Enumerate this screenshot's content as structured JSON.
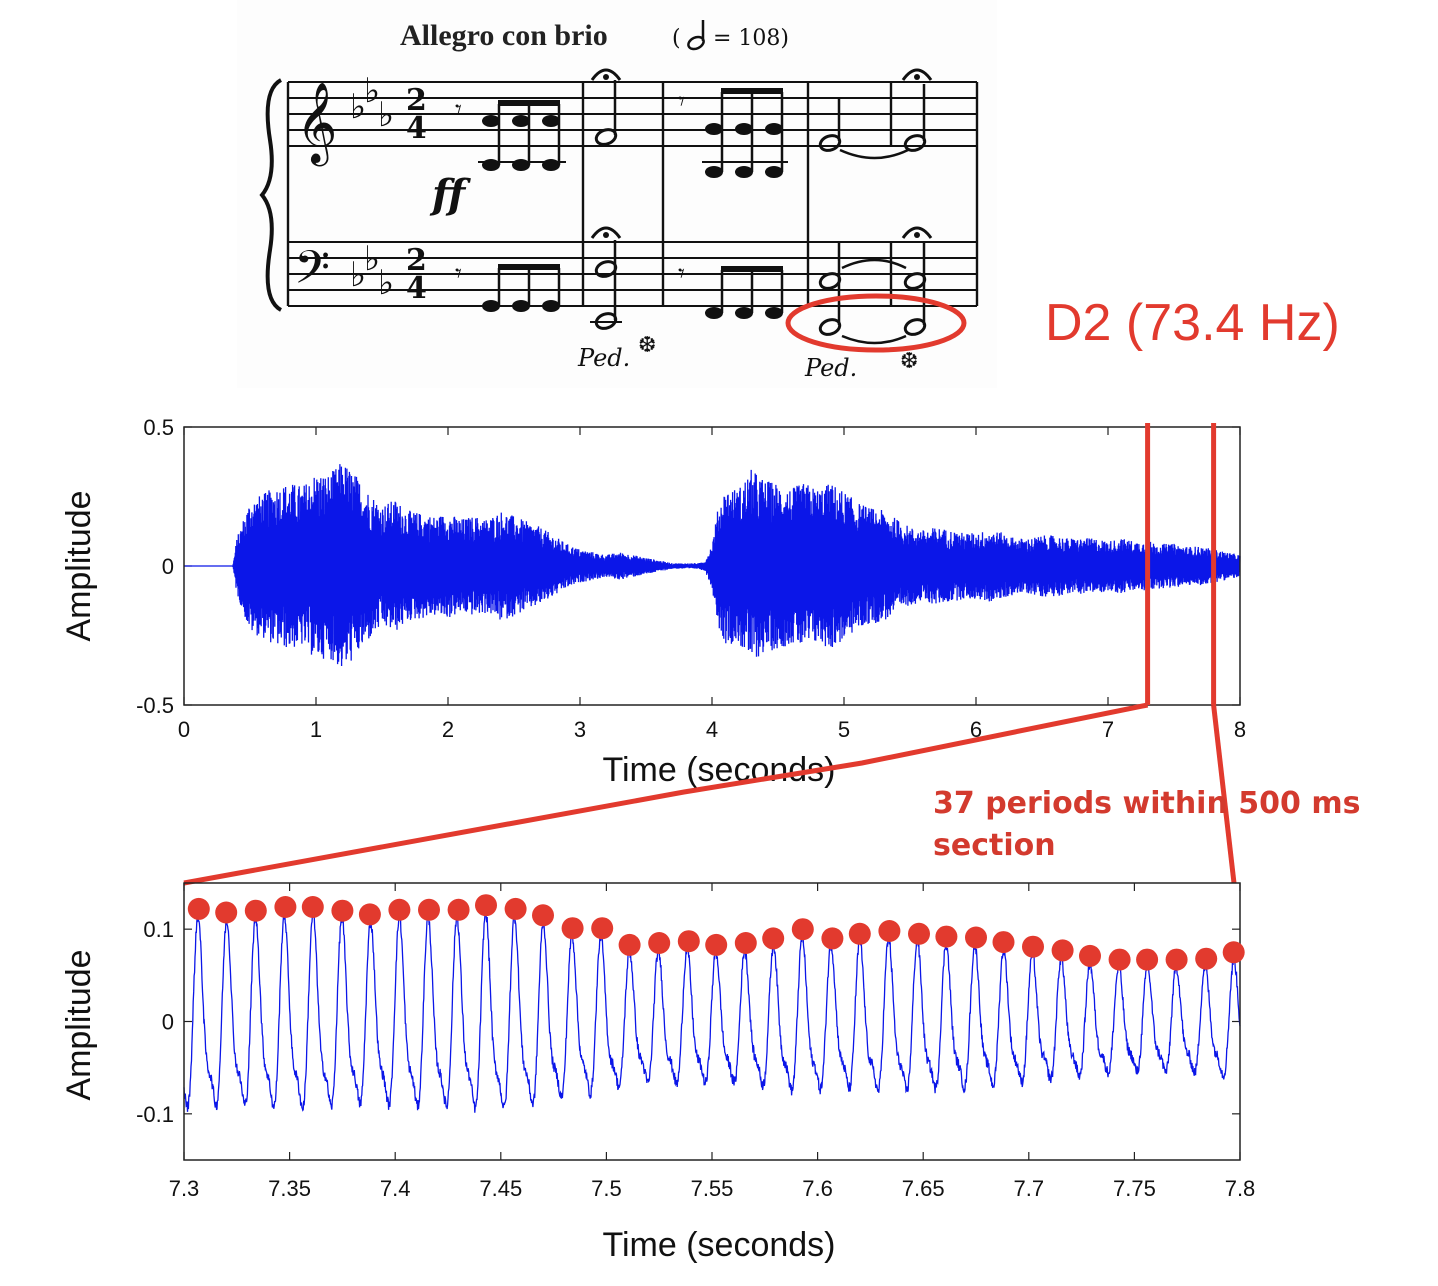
{
  "score": {
    "tempo_label": "Allegro con brio",
    "tempo_marking": "= 108)",
    "tempo_paren": "(",
    "dynamic": "ff",
    "pedal_1": "Ped.",
    "pedal_2": "Ped.",
    "pedal_release": "❆"
  },
  "annotations": {
    "note_label": "D2 (73.4 Hz)",
    "periods_line1": "37 periods within 500 ms",
    "periods_line2": "section"
  },
  "colors": {
    "waveform": "#0b16e8",
    "annotation": "#e23a2e"
  },
  "chart_data": [
    {
      "type": "line",
      "title": "",
      "xlabel": "Time (seconds)",
      "ylabel": "Amplitude",
      "xlim": [
        0,
        8
      ],
      "ylim": [
        -0.5,
        0.5
      ],
      "xticks": [
        0,
        1,
        2,
        3,
        4,
        5,
        6,
        7,
        8
      ],
      "xtick_labels": [
        "0",
        "1",
        "2",
        "3",
        "4",
        "5",
        "6",
        "7",
        "8"
      ],
      "yticks": [
        -0.5,
        0,
        0.5
      ],
      "ytick_labels": [
        "-0.5",
        "0",
        "0.5"
      ],
      "grid": false,
      "highlight_region": [
        7.3,
        7.8
      ],
      "envelope": {
        "t": [
          0,
          0.37,
          0.4,
          0.5,
          0.6,
          0.7,
          0.8,
          0.9,
          1.0,
          1.1,
          1.2,
          1.3,
          1.4,
          1.5,
          1.6,
          1.7,
          1.8,
          1.9,
          2.0,
          2.1,
          2.2,
          2.3,
          2.4,
          2.5,
          2.6,
          2.7,
          2.8,
          2.9,
          3.0,
          3.1,
          3.2,
          3.3,
          3.4,
          3.5,
          3.6,
          3.7,
          3.8,
          3.9,
          3.95,
          4.0,
          4.05,
          4.1,
          4.2,
          4.3,
          4.4,
          4.5,
          4.6,
          4.7,
          4.8,
          4.9,
          5.0,
          5.1,
          5.2,
          5.3,
          5.4,
          5.5,
          5.6,
          5.7,
          5.8,
          5.9,
          6.0,
          6.1,
          6.2,
          6.3,
          6.4,
          6.5,
          6.6,
          6.7,
          6.8,
          6.9,
          7.0,
          7.1,
          7.2,
          7.3,
          7.4,
          7.5,
          7.6,
          7.7,
          7.8,
          7.9,
          8.0
        ],
        "amp": [
          0,
          0,
          0.1,
          0.24,
          0.26,
          0.29,
          0.3,
          0.29,
          0.34,
          0.33,
          0.38,
          0.33,
          0.27,
          0.22,
          0.24,
          0.2,
          0.19,
          0.18,
          0.19,
          0.17,
          0.18,
          0.17,
          0.2,
          0.18,
          0.16,
          0.14,
          0.11,
          0.08,
          0.06,
          0.05,
          0.04,
          0.05,
          0.04,
          0.03,
          0.02,
          0.01,
          0.01,
          0.01,
          0.02,
          0.08,
          0.22,
          0.28,
          0.28,
          0.35,
          0.31,
          0.3,
          0.28,
          0.3,
          0.28,
          0.3,
          0.27,
          0.23,
          0.21,
          0.2,
          0.17,
          0.14,
          0.13,
          0.14,
          0.13,
          0.12,
          0.12,
          0.13,
          0.12,
          0.1,
          0.1,
          0.11,
          0.11,
          0.1,
          0.1,
          0.1,
          0.09,
          0.1,
          0.09,
          0.09,
          0.08,
          0.08,
          0.07,
          0.07,
          0.06,
          0.05,
          0.04
        ]
      }
    },
    {
      "type": "line",
      "title": "",
      "xlabel": "Time (seconds)",
      "ylabel": "Amplitude",
      "xlim": [
        7.3,
        7.8
      ],
      "ylim": [
        -0.15,
        0.15
      ],
      "xticks": [
        7.3,
        7.35,
        7.4,
        7.45,
        7.5,
        7.55,
        7.6,
        7.65,
        7.7,
        7.75,
        7.8
      ],
      "xtick_labels": [
        "7.3",
        "7.35",
        "7.4",
        "7.45",
        "7.5",
        "7.55",
        "7.6",
        "7.65",
        "7.7",
        "7.75",
        "7.8"
      ],
      "yticks": [
        -0.1,
        0,
        0.1
      ],
      "ytick_labels": [
        "-0.1",
        "0",
        "0.1"
      ],
      "grid": false,
      "fundamental_hz": 73.4,
      "peaks": {
        "t": [
          7.307,
          7.32,
          7.334,
          7.348,
          7.361,
          7.375,
          7.388,
          7.402,
          7.416,
          7.43,
          7.443,
          7.457,
          7.47,
          7.484,
          7.498,
          7.511,
          7.525,
          7.539,
          7.552,
          7.566,
          7.579,
          7.593,
          7.607,
          7.62,
          7.634,
          7.648,
          7.661,
          7.675,
          7.688,
          7.702,
          7.716,
          7.729,
          7.743,
          7.756,
          7.77,
          7.784,
          7.797
        ],
        "amplitude": [
          0.122,
          0.118,
          0.12,
          0.124,
          0.124,
          0.12,
          0.116,
          0.121,
          0.121,
          0.121,
          0.126,
          0.122,
          0.115,
          0.101,
          0.101,
          0.083,
          0.085,
          0.087,
          0.083,
          0.085,
          0.09,
          0.1,
          0.09,
          0.095,
          0.098,
          0.095,
          0.092,
          0.091,
          0.086,
          0.081,
          0.077,
          0.071,
          0.067,
          0.067,
          0.067,
          0.068,
          0.075
        ]
      }
    }
  ]
}
